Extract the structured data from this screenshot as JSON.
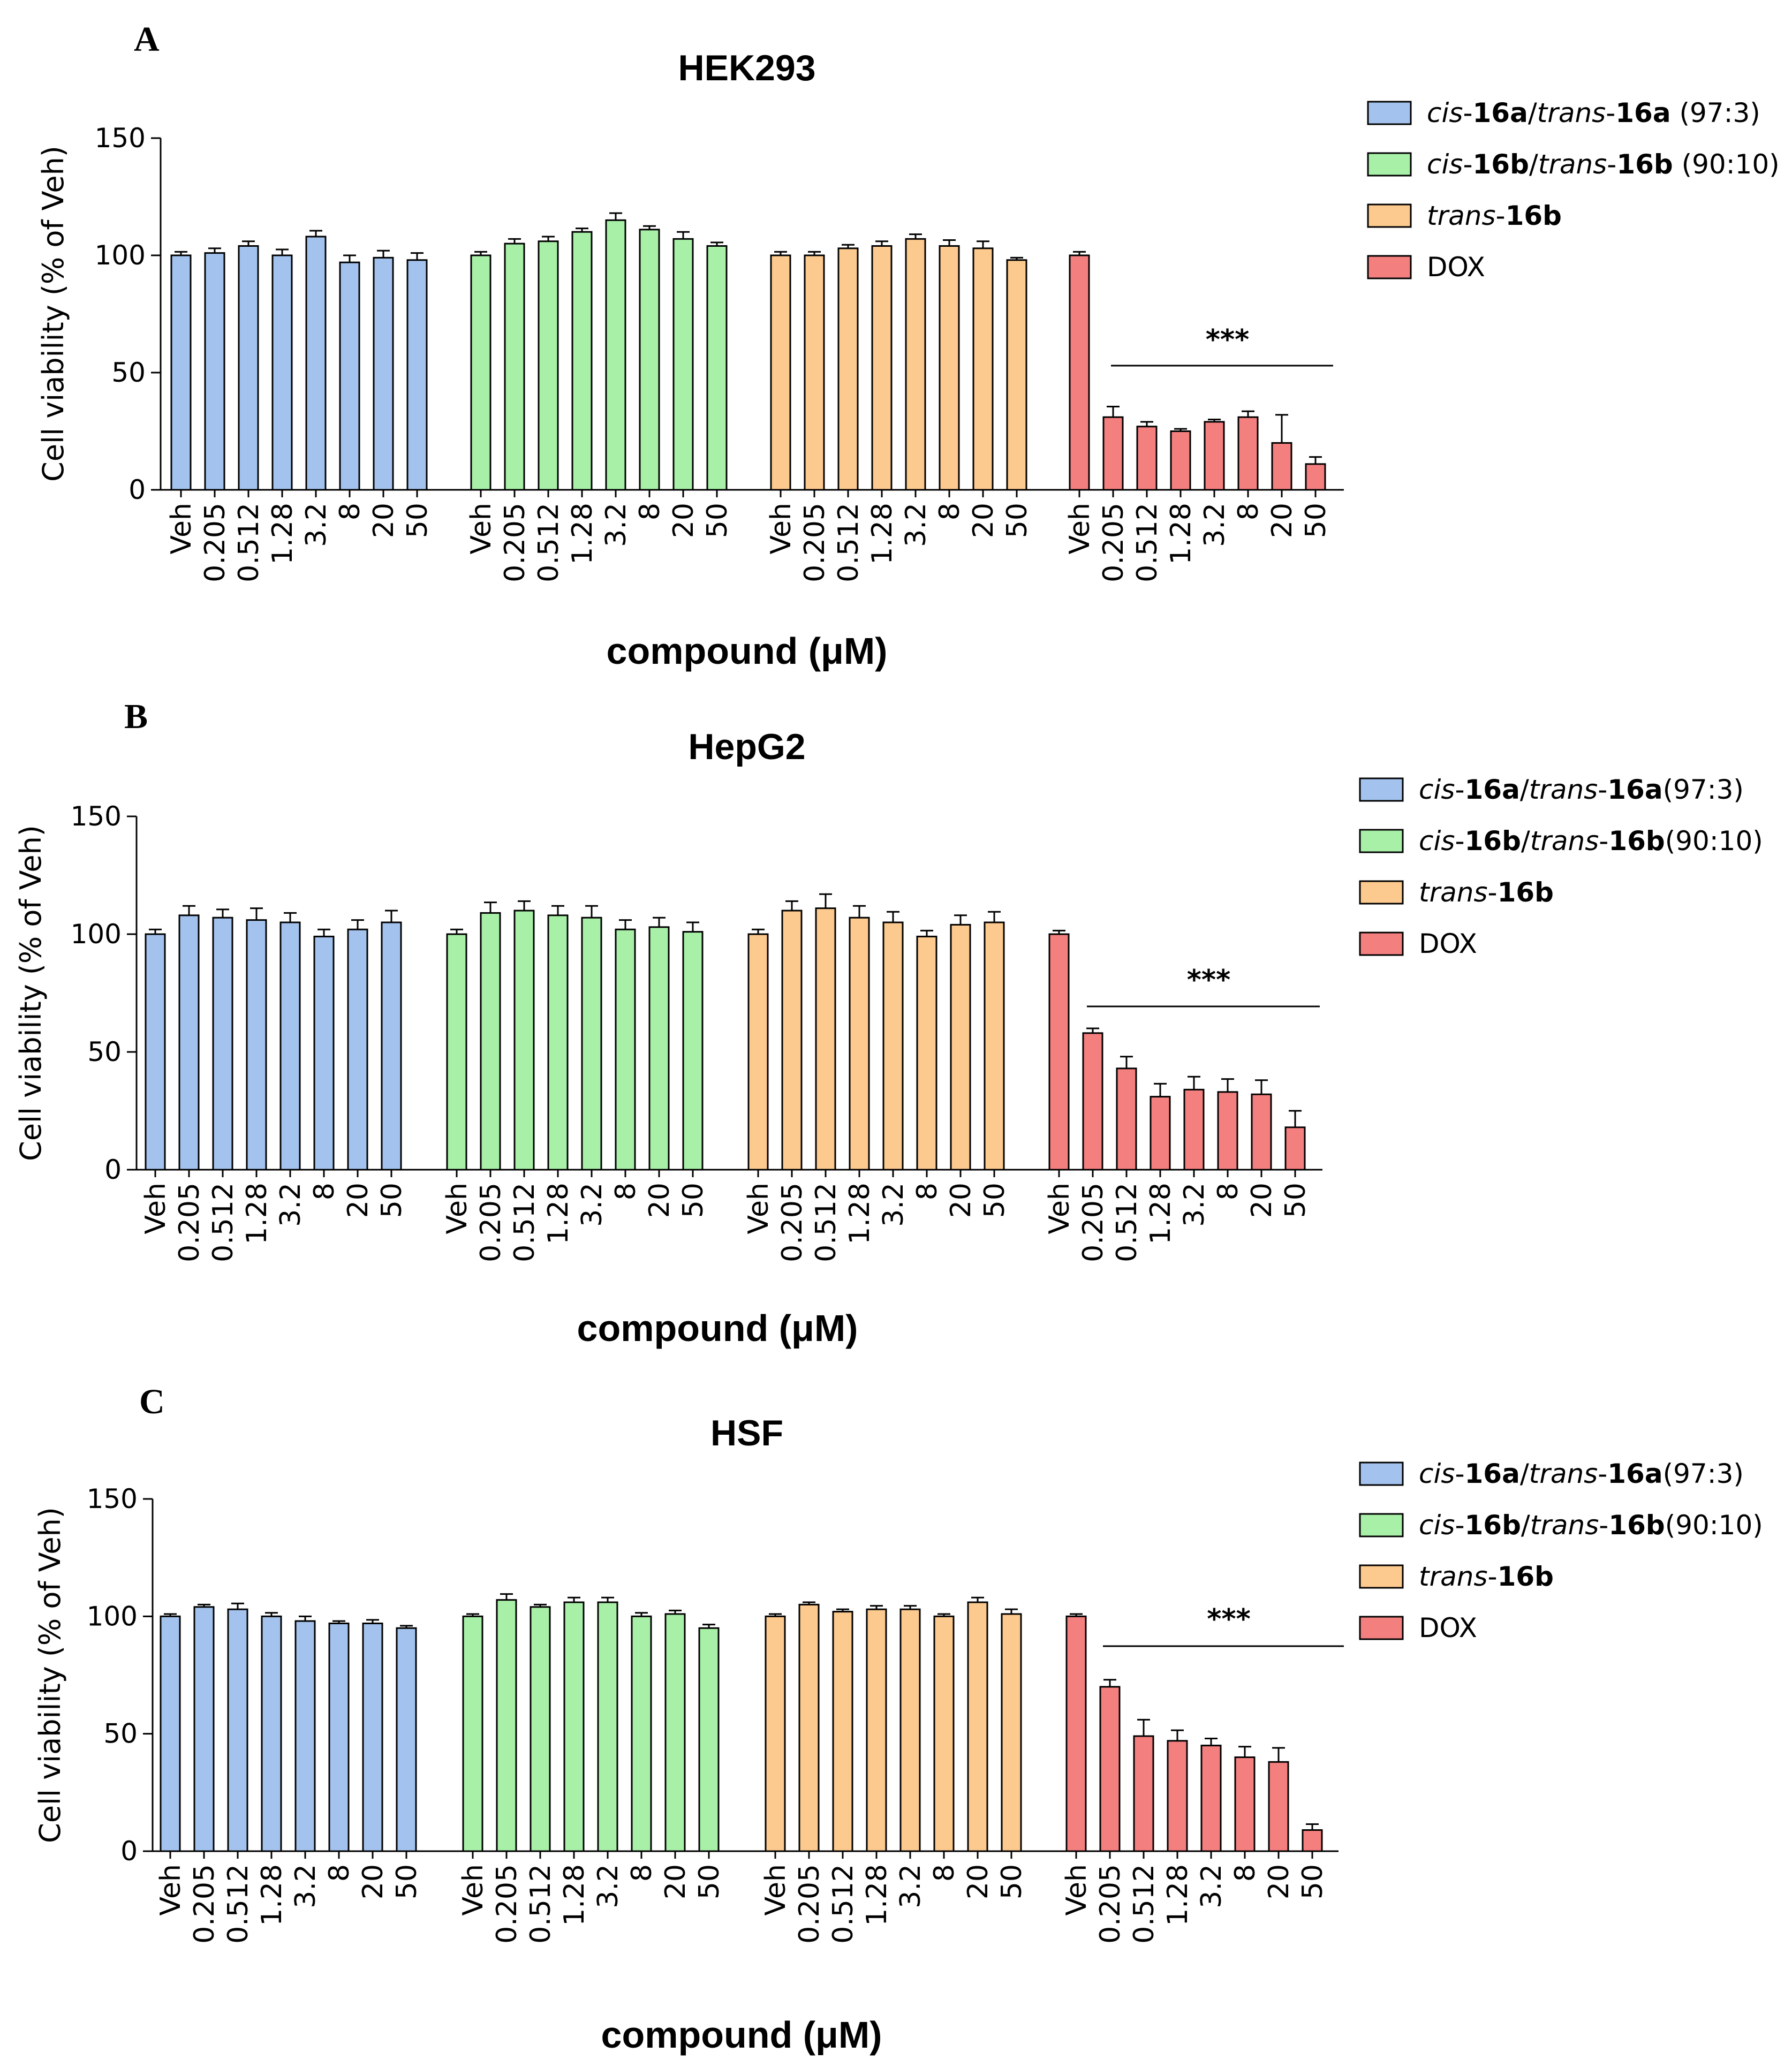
{
  "chart_data": [
    {
      "type": "bar",
      "panel": "A",
      "title": "HEK293",
      "xlabel": "compound (μM)",
      "ylabel": "Cell viability (% of Veh)",
      "ylim": [
        0,
        150
      ],
      "yticks": [
        0,
        50,
        100,
        150
      ],
      "categories": [
        "Veh",
        "0.205",
        "0.512",
        "1.28",
        "3.2",
        "8",
        "20",
        "50"
      ],
      "significance": "***",
      "legend_position": "top-right",
      "series": [
        {
          "name": "cis-16a/trans-16a (97:3)",
          "legend": [
            {
              "t": "cis",
              "i": true
            },
            {
              "t": "-"
            },
            {
              "t": "16a",
              "b": true
            },
            {
              "t": "/"
            },
            {
              "t": "trans",
              "i": true
            },
            {
              "t": "-"
            },
            {
              "t": "16a",
              "b": true
            },
            {
              "t": " (97:3)"
            }
          ],
          "color": "#a3c3ee",
          "values": [
            100,
            101,
            104,
            100,
            108,
            97,
            99,
            98
          ],
          "errors": [
            1.5,
            2,
            2,
            2.5,
            2.5,
            3,
            3,
            3
          ]
        },
        {
          "name": "cis-16b/trans-16b (90:10)",
          "legend": [
            {
              "t": "cis",
              "i": true
            },
            {
              "t": "-"
            },
            {
              "t": "16b",
              "b": true
            },
            {
              "t": "/"
            },
            {
              "t": "trans",
              "i": true
            },
            {
              "t": "-"
            },
            {
              "t": "16b",
              "b": true
            },
            {
              "t": " (90:10)"
            }
          ],
          "color": "#a8f0a8",
          "values": [
            100,
            105,
            106,
            110,
            115,
            111,
            107,
            104
          ],
          "errors": [
            1.5,
            2,
            2,
            1.5,
            3,
            1.5,
            3,
            1.5
          ]
        },
        {
          "name": "trans-16b",
          "legend": [
            {
              "t": "trans",
              "i": true
            },
            {
              "t": "-"
            },
            {
              "t": "16b",
              "b": true
            }
          ],
          "color": "#fcc98e",
          "values": [
            100,
            100,
            103,
            104,
            107,
            104,
            103,
            98
          ],
          "errors": [
            1.5,
            1.5,
            1.5,
            2,
            2,
            2.5,
            3,
            1
          ]
        },
        {
          "name": "DOX",
          "legend": [
            {
              "t": "DOX"
            }
          ],
          "color": "#f47f7f",
          "values": [
            100,
            31,
            27,
            25,
            29,
            31,
            20,
            11
          ],
          "errors": [
            1.5,
            4.5,
            2,
            1,
            1,
            2.5,
            12,
            3
          ]
        }
      ]
    },
    {
      "type": "bar",
      "panel": "B",
      "title": "HepG2",
      "xlabel": "compound (μM)",
      "ylabel": "Cell viability (% of Veh)",
      "ylim": [
        0,
        150
      ],
      "yticks": [
        0,
        50,
        100,
        150
      ],
      "categories": [
        "Veh",
        "0.205",
        "0.512",
        "1.28",
        "3.2",
        "8",
        "20",
        "50"
      ],
      "significance": "***",
      "legend_position": "top-right",
      "series": [
        {
          "name": "cis-16a/trans-16a(97:3)",
          "legend": [
            {
              "t": "cis",
              "i": true
            },
            {
              "t": "-"
            },
            {
              "t": "16a",
              "b": true
            },
            {
              "t": "/"
            },
            {
              "t": "trans",
              "i": true
            },
            {
              "t": "-"
            },
            {
              "t": "16a",
              "b": true
            },
            {
              "t": "(97:3)"
            }
          ],
          "color": "#a3c3ee",
          "values": [
            100,
            108,
            107,
            106,
            105,
            99,
            102,
            105
          ],
          "errors": [
            2,
            4,
            3.5,
            5,
            4,
            3,
            4,
            5
          ]
        },
        {
          "name": "cis-16b/trans-16b(90:10)",
          "legend": [
            {
              "t": "cis",
              "i": true
            },
            {
              "t": "-"
            },
            {
              "t": "16b",
              "b": true
            },
            {
              "t": "/"
            },
            {
              "t": "trans",
              "i": true
            },
            {
              "t": "-"
            },
            {
              "t": "16b",
              "b": true
            },
            {
              "t": "(90:10)"
            }
          ],
          "color": "#a8f0a8",
          "values": [
            100,
            109,
            110,
            108,
            107,
            102,
            103,
            101
          ],
          "errors": [
            2,
            4.5,
            4,
            4,
            5,
            4,
            4,
            4
          ]
        },
        {
          "name": "trans-16b",
          "legend": [
            {
              "t": "trans",
              "i": true
            },
            {
              "t": "-"
            },
            {
              "t": "16b",
              "b": true
            }
          ],
          "color": "#fcc98e",
          "values": [
            100,
            110,
            111,
            107,
            105,
            99,
            104,
            105
          ],
          "errors": [
            2,
            4,
            6,
            5,
            4.5,
            2.5,
            4,
            4.5
          ]
        },
        {
          "name": "DOX",
          "legend": [
            {
              "t": "DOX"
            }
          ],
          "color": "#f47f7f",
          "values": [
            100,
            58,
            43,
            31,
            34,
            33,
            32,
            18
          ],
          "errors": [
            1.5,
            2,
            5,
            5.5,
            5.5,
            5.5,
            6,
            7
          ]
        }
      ]
    },
    {
      "type": "bar",
      "panel": "C",
      "title": "HSF",
      "xlabel": "compound (μM)",
      "ylabel": "Cell viability (% of Veh)",
      "ylim": [
        0,
        150
      ],
      "yticks": [
        0,
        50,
        100,
        150
      ],
      "categories": [
        "Veh",
        "0.205",
        "0.512",
        "1.28",
        "3.2",
        "8",
        "20",
        "50"
      ],
      "significance": "***",
      "legend_position": "top-right",
      "series": [
        {
          "name": "cis-16a/trans-16a(97:3)",
          "legend": [
            {
              "t": "cis",
              "i": true
            },
            {
              "t": "-"
            },
            {
              "t": "16a",
              "b": true
            },
            {
              "t": "/"
            },
            {
              "t": "trans",
              "i": true
            },
            {
              "t": "-"
            },
            {
              "t": "16a",
              "b": true
            },
            {
              "t": "(97:3)"
            }
          ],
          "color": "#a3c3ee",
          "values": [
            100,
            104,
            103,
            100,
            98,
            97,
            97,
            95
          ],
          "errors": [
            1,
            1,
            2.5,
            1.5,
            2,
            1,
            1.5,
            1
          ]
        },
        {
          "name": "cis-16b/trans-16b(90:10)",
          "legend": [
            {
              "t": "cis",
              "i": true
            },
            {
              "t": "-"
            },
            {
              "t": "16b",
              "b": true
            },
            {
              "t": "/"
            },
            {
              "t": "trans",
              "i": true
            },
            {
              "t": "-"
            },
            {
              "t": "16b",
              "b": true
            },
            {
              "t": "(90:10)"
            }
          ],
          "color": "#a8f0a8",
          "values": [
            100,
            107,
            104,
            106,
            106,
            100,
            101,
            95
          ],
          "errors": [
            1,
            2.5,
            1,
            2,
            2,
            1.5,
            1.5,
            1.5
          ]
        },
        {
          "name": "trans-16b",
          "legend": [
            {
              "t": "trans",
              "i": true
            },
            {
              "t": "-"
            },
            {
              "t": "16b",
              "b": true
            }
          ],
          "color": "#fcc98e",
          "values": [
            100,
            105,
            102,
            103,
            103,
            100,
            106,
            101
          ],
          "errors": [
            1,
            1,
            1,
            1.5,
            1.5,
            1,
            2,
            2
          ]
        },
        {
          "name": "DOX",
          "legend": [
            {
              "t": "DOX"
            }
          ],
          "color": "#f47f7f",
          "values": [
            100,
            70,
            49,
            47,
            45,
            40,
            38,
            9
          ],
          "errors": [
            1,
            3,
            7,
            4.5,
            3,
            4.5,
            6,
            2.5
          ]
        }
      ]
    }
  ]
}
